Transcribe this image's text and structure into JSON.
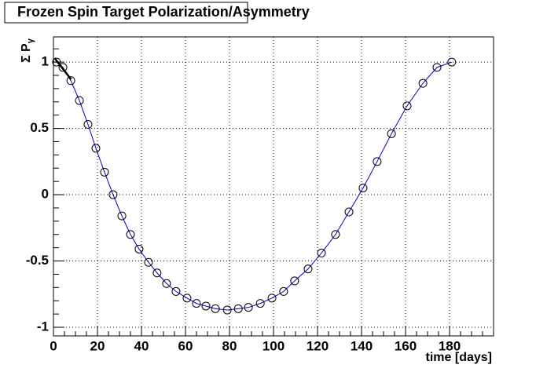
{
  "chart_data": {
    "type": "line",
    "title": "Frozen Spin Target Polarization/Asymmetry",
    "x_label": "time [days]",
    "y_label": {
      "text": "Σ P",
      "subscript": "γ"
    },
    "x": [
      1.4,
      4.3,
      7.9,
      11.8,
      15.7,
      19.3,
      23.2,
      27.1,
      31.1,
      35,
      38.9,
      43.2,
      47.1,
      51.4,
      55.7,
      60.7,
      65,
      69.3,
      73.6,
      79,
      84,
      88.6,
      94,
      99.3,
      104.6,
      109.6,
      115.7,
      121.8,
      128.2,
      134.3,
      140.7,
      147.1,
      153.6,
      160.7,
      167.9,
      174.3,
      181
    ],
    "series": [
      {
        "color": "#0000cc",
        "marker_color": "#000000",
        "values": [
          1.0,
          0.96,
          0.86,
          0.71,
          0.53,
          0.35,
          0.17,
          0.0,
          -0.16,
          -0.3,
          -0.41,
          -0.51,
          -0.59,
          -0.67,
          -0.73,
          -0.78,
          -0.82,
          -0.84,
          -0.86,
          -0.87,
          -0.86,
          -0.85,
          -0.82,
          -0.78,
          -0.73,
          -0.65,
          -0.56,
          -0.44,
          -0.3,
          -0.13,
          0.05,
          0.25,
          0.46,
          0.67,
          0.84,
          0.96,
          1.0
        ]
      },
      {
        "color": "#000000",
        "x": [
          0.5,
          8
        ],
        "values": [
          1.03,
          0.87
        ]
      }
    ],
    "xlim": [
      0,
      200
    ],
    "ylim": [
      -1.065,
      1.19
    ],
    "xticks": [
      0,
      20,
      40,
      60,
      80,
      100,
      120,
      140,
      160,
      180
    ],
    "yticks": [
      -1,
      -0.5,
      0,
      0.5,
      1
    ],
    "grid": true
  }
}
